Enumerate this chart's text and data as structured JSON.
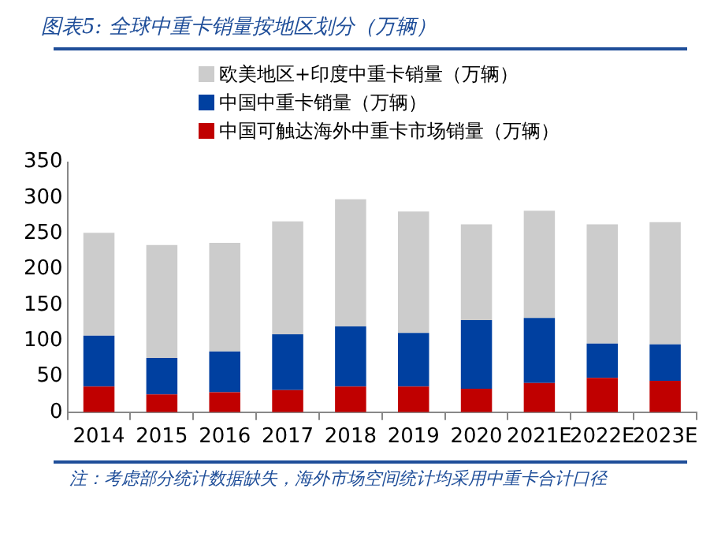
{
  "chart_data": {
    "type": "bar",
    "title": "图表5: 全球中重卡销量按地区划分（万辆）",
    "categories": [
      "2014",
      "2015",
      "2016",
      "2017",
      "2018",
      "2019",
      "2020",
      "2021E",
      "2022E",
      "2023E"
    ],
    "series": [
      {
        "name": "中国可触达海外中重卡市场销量（万辆）",
        "color": "#c00000",
        "values": [
          36,
          25,
          28,
          31,
          36,
          36,
          33,
          41,
          48,
          44
        ]
      },
      {
        "name": "中国中重卡销量（万辆）",
        "color": "#0040a0",
        "values": [
          71,
          51,
          57,
          78,
          84,
          75,
          96,
          91,
          48,
          51
        ]
      },
      {
        "name": "欧美地区+印度中重卡销量（万辆）",
        "color": "#cccccc",
        "values": [
          144,
          158,
          152,
          158,
          178,
          170,
          134,
          150,
          167,
          171
        ]
      }
    ],
    "stacked": true,
    "ylim": [
      0,
      350
    ],
    "yticks": [
      0,
      50,
      100,
      150,
      200,
      250,
      300,
      350
    ],
    "grid": false,
    "legend": "top left",
    "annotations": [
      "注：考虑部分统计数据缺失，海外市场空间统计均采用中重卡合计口径"
    ]
  }
}
